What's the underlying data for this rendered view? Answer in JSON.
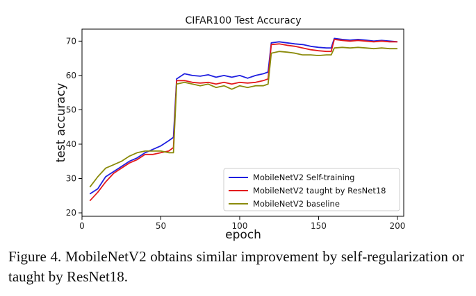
{
  "chart_data": {
    "type": "line",
    "title": "CIFAR100 Test Accuracy",
    "xlabel": "epoch",
    "ylabel": "test accuracy",
    "xlim": [
      0,
      204
    ],
    "ylim": [
      19,
      73.5
    ],
    "xticks": [
      0,
      50,
      100,
      150,
      200
    ],
    "yticks": [
      20,
      30,
      40,
      50,
      60,
      70
    ],
    "xtick_labels": [
      "0",
      "50",
      "100",
      "150",
      "200"
    ],
    "ytick_labels": [
      "20",
      "30",
      "40",
      "50",
      "60",
      "70"
    ],
    "grid": false,
    "legend_position": "lower-right",
    "x": [
      5,
      10,
      15,
      20,
      25,
      30,
      35,
      40,
      45,
      50,
      55,
      58,
      60,
      65,
      70,
      75,
      80,
      85,
      90,
      95,
      100,
      105,
      110,
      115,
      118,
      120,
      125,
      130,
      135,
      140,
      145,
      150,
      155,
      158,
      160,
      165,
      170,
      175,
      180,
      185,
      190,
      195,
      200
    ],
    "series": [
      {
        "name": "MobileNetV2 Self-training",
        "color": "#1f1fe0",
        "values": [
          25.5,
          27.0,
          30.5,
          32.0,
          33.5,
          35.0,
          36.0,
          37.5,
          38.5,
          39.5,
          41.0,
          42.0,
          59.0,
          60.5,
          60.0,
          59.8,
          60.2,
          59.5,
          60.0,
          59.5,
          60.0,
          59.2,
          60.0,
          60.5,
          61.0,
          69.5,
          69.8,
          69.5,
          69.2,
          69.0,
          68.5,
          68.2,
          68.0,
          68.0,
          70.8,
          70.5,
          70.3,
          70.5,
          70.3,
          70.0,
          70.2,
          70.0,
          69.8
        ]
      },
      {
        "name": "MobileNetV2 taught by ResNet18",
        "color": "#e31a1c",
        "values": [
          23.5,
          26.0,
          29.0,
          31.5,
          33.0,
          34.5,
          35.5,
          37.0,
          37.0,
          37.5,
          38.0,
          39.0,
          58.5,
          58.5,
          58.0,
          57.8,
          58.0,
          57.5,
          58.0,
          57.5,
          58.0,
          57.8,
          58.0,
          58.5,
          59.0,
          69.0,
          69.2,
          68.8,
          68.5,
          68.0,
          67.5,
          67.2,
          67.0,
          67.0,
          70.5,
          70.2,
          70.0,
          70.2,
          70.0,
          69.8,
          70.0,
          69.8,
          69.8
        ]
      },
      {
        "name": "MobileNetV2 baseline",
        "color": "#8a8a0a",
        "values": [
          27.5,
          30.5,
          33.0,
          34.0,
          35.0,
          36.5,
          37.5,
          38.0,
          38.0,
          38.0,
          37.5,
          37.5,
          57.5,
          58.0,
          57.5,
          57.0,
          57.5,
          56.5,
          57.0,
          56.0,
          57.0,
          56.5,
          57.0,
          57.0,
          57.5,
          66.5,
          67.0,
          66.8,
          66.5,
          66.0,
          66.0,
          65.8,
          66.0,
          66.0,
          68.0,
          68.2,
          68.0,
          68.2,
          68.0,
          67.8,
          68.0,
          67.8,
          67.8
        ]
      }
    ]
  },
  "caption": "Figure 4. MobileNetV2 obtains similar improvement by self-regularization or taught by ResNet18."
}
